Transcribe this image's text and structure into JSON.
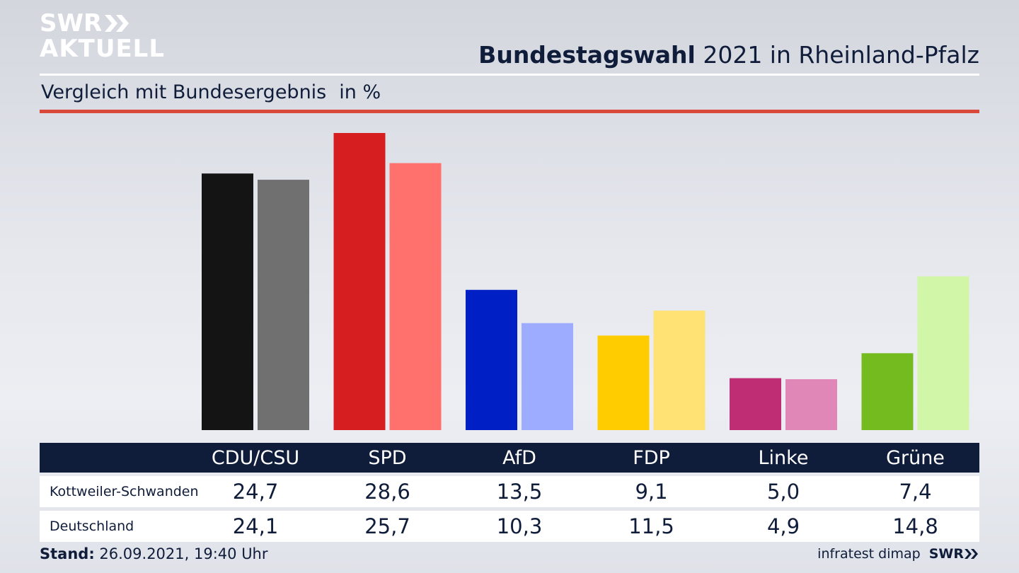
{
  "branding": {
    "logo_line1": "SWR",
    "logo_line2": "AKTUELL",
    "footer_logo": "SWR"
  },
  "header": {
    "title_bold": "Bundestagswahl",
    "title_rest": "2021 in Rheinland-Pfalz",
    "subtitle": "Vergleich mit Bundesergebnis",
    "unit": "in %"
  },
  "footer": {
    "stand_label": "Stand:",
    "stand_value": "26.09.2021, 19:40 Uhr",
    "source": "infratest dimap"
  },
  "colors": {
    "title": "#0f1c3a",
    "header_bar": "#0f1c3a",
    "red_rule": "#d9483b"
  },
  "chart_data": {
    "type": "bar",
    "categories": [
      "CDU/CSU",
      "SPD",
      "AfD",
      "FDP",
      "Linke",
      "Grüne"
    ],
    "series": [
      {
        "name": "Kottweiler-Schwanden",
        "values": [
          24.7,
          28.6,
          13.5,
          9.1,
          5.0,
          7.4
        ],
        "display": [
          "24,7",
          "28,6",
          "13,5",
          "9,1",
          "5,0",
          "7,4"
        ],
        "colors": [
          "#141414",
          "#d61e20",
          "#0020c6",
          "#ffcc00",
          "#bf2d74",
          "#73bb1e"
        ]
      },
      {
        "name": "Deutschland",
        "values": [
          24.1,
          25.7,
          10.3,
          11.5,
          4.9,
          14.8
        ],
        "display": [
          "24,1",
          "25,7",
          "10,3",
          "11,5",
          "4,9",
          "14,8"
        ],
        "colors": [
          "#717070",
          "#ff716c",
          "#9eacff",
          "#ffe273",
          "#e087b8",
          "#d2f6a7"
        ]
      }
    ],
    "ylim": [
      0,
      28.6
    ],
    "grid": false,
    "legend": "table-below"
  }
}
